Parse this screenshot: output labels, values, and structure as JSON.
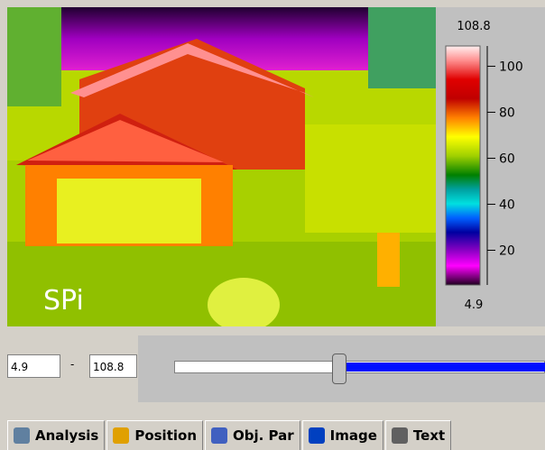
{
  "image": {
    "watermark": "SPi"
  },
  "scale": {
    "max": 108.8,
    "min": 4.9,
    "ticks": [
      20,
      40,
      60,
      80,
      100
    ]
  },
  "tabs": [
    "Analysis",
    "Position",
    "Obj. Par",
    "Image",
    "Text"
  ]
}
